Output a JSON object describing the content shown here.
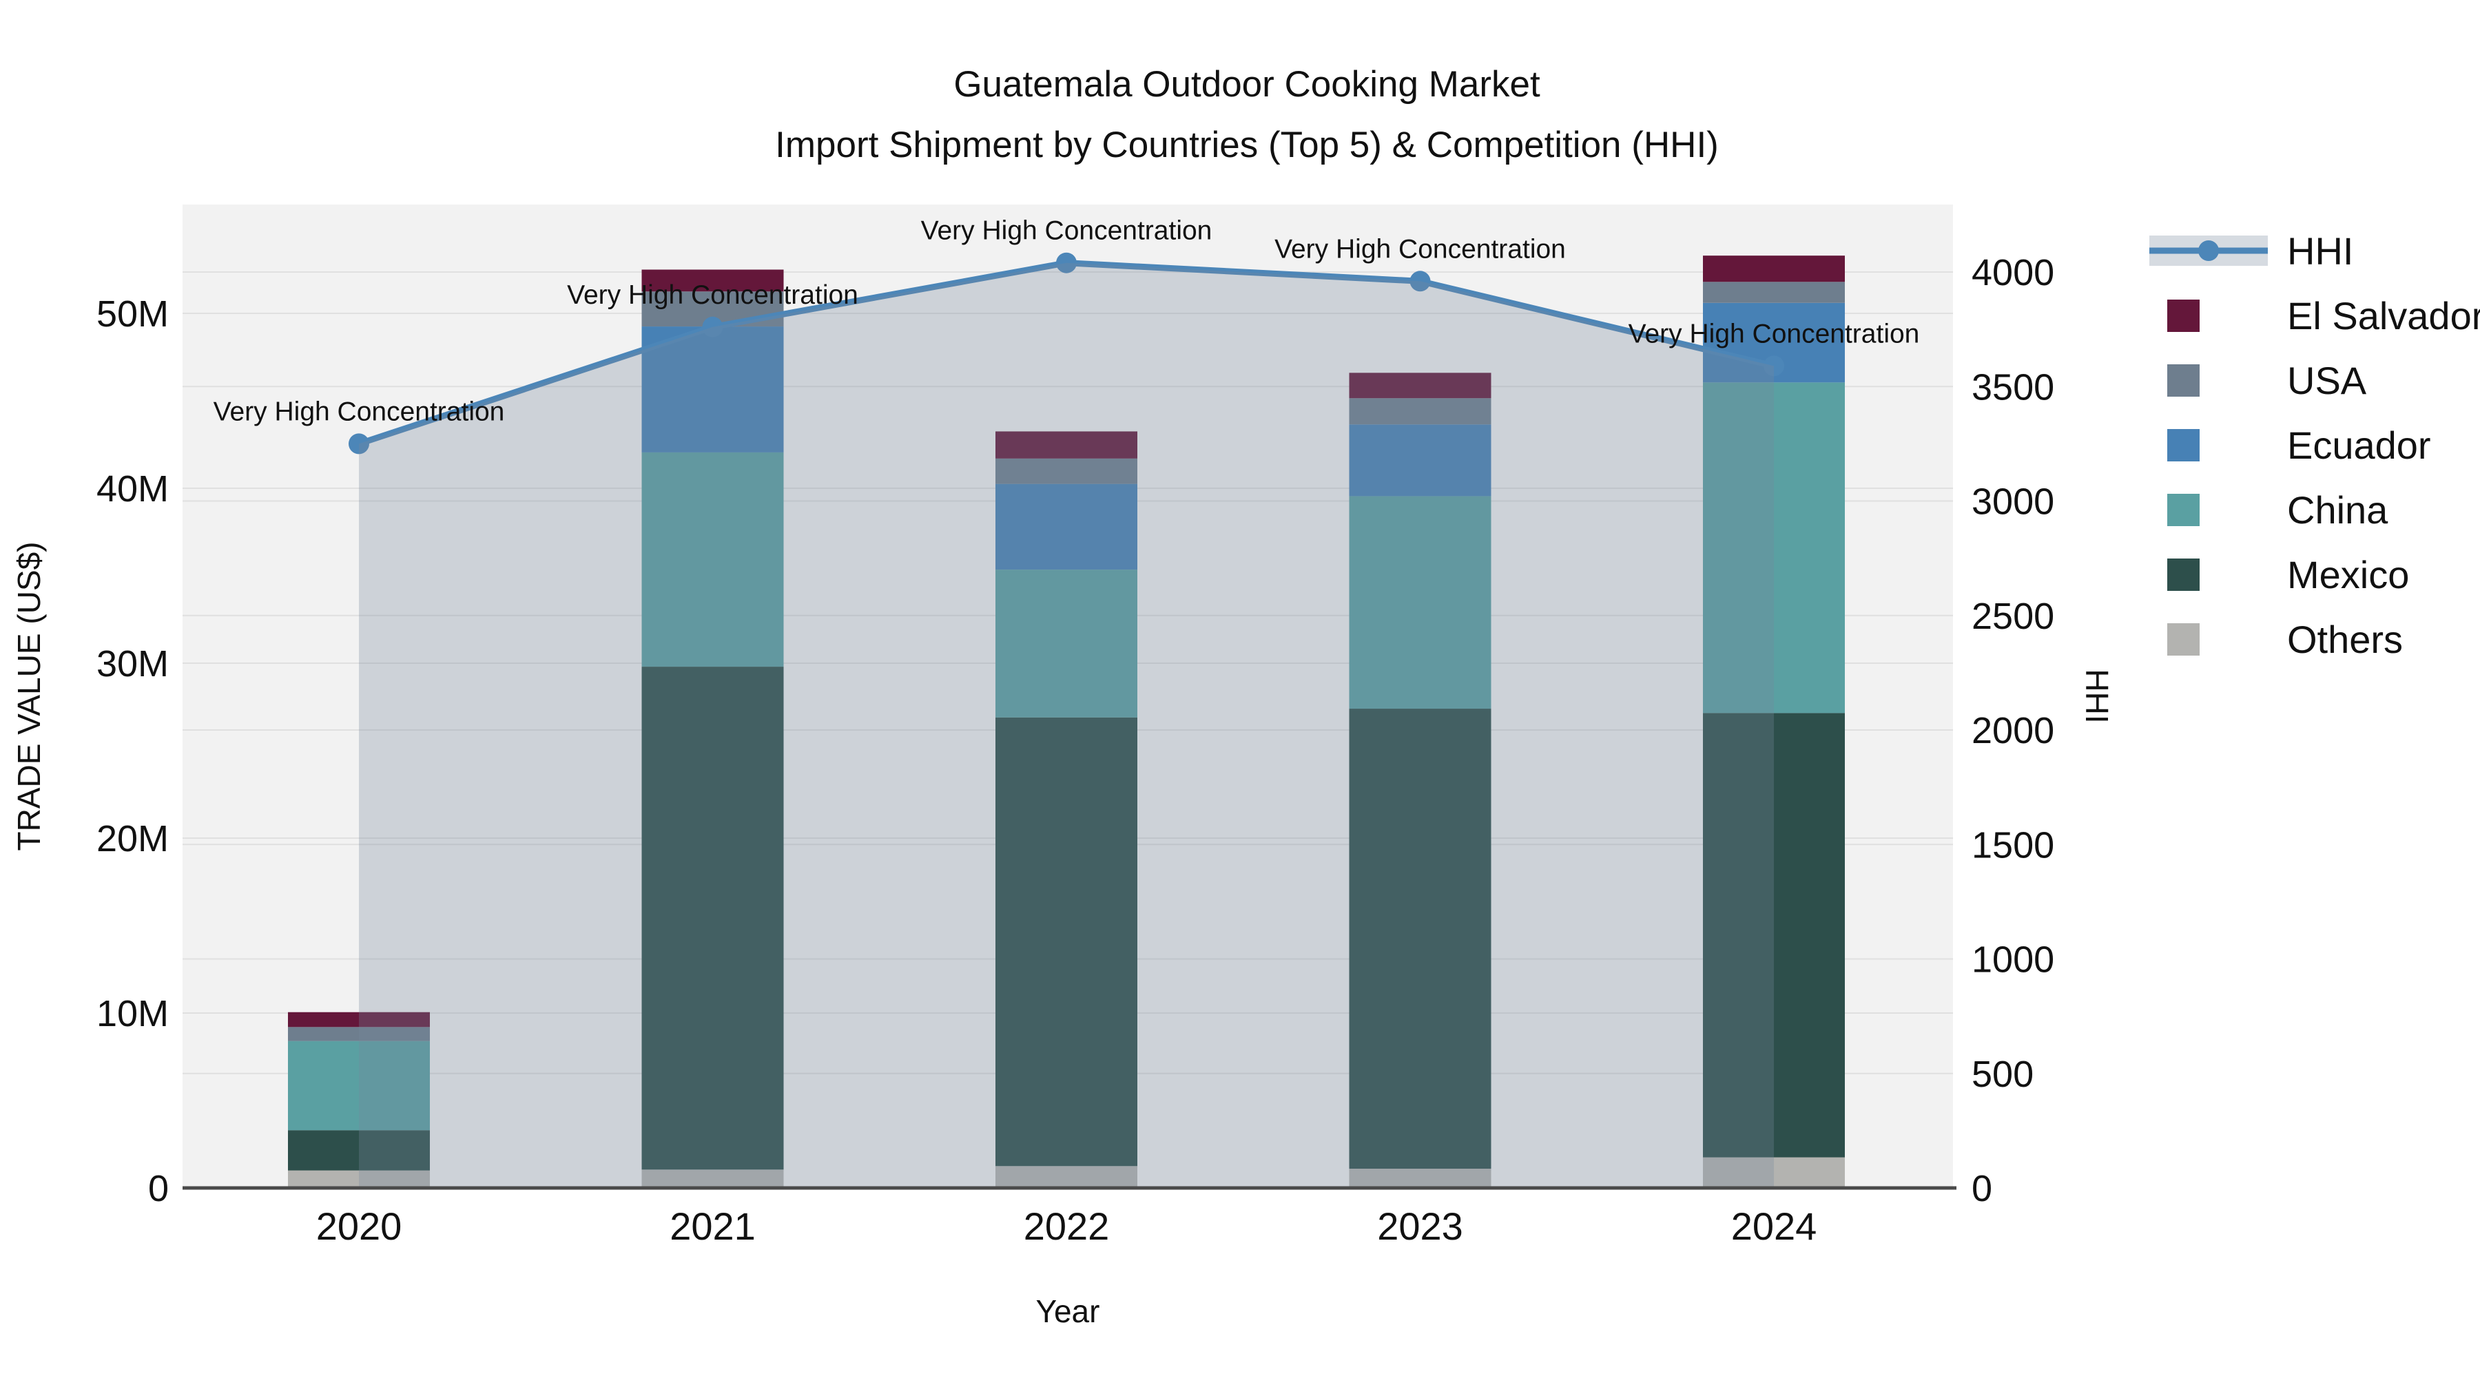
{
  "title": {
    "line1": "Guatemala Outdoor Cooking Market",
    "line2": "Import Shipment by Countries (Top 5) & Competition (HHI)"
  },
  "axes": {
    "y_left": {
      "label": "TRADE VALUE (US$)",
      "ticks": [
        "0",
        "10M",
        "20M",
        "30M",
        "40M",
        "50M"
      ],
      "tick_values": [
        0,
        10,
        20,
        30,
        40,
        50
      ]
    },
    "y_right": {
      "label": "HHI",
      "ticks": [
        "0",
        "500",
        "1000",
        "1500",
        "2000",
        "2500",
        "3000",
        "3500",
        "4000"
      ],
      "tick_values": [
        0,
        500,
        1000,
        1500,
        2000,
        2500,
        3000,
        3500,
        4000
      ]
    },
    "x": {
      "label": "Year",
      "categories": [
        "2020",
        "2021",
        "2022",
        "2023",
        "2024"
      ]
    }
  },
  "legend": {
    "items": [
      {
        "label": "HHI",
        "type": "line"
      },
      {
        "label": "El Salvador",
        "type": "swatch",
        "color": "#64173a"
      },
      {
        "label": "USA",
        "type": "swatch",
        "color": "#6e7e8e"
      },
      {
        "label": "Ecuador",
        "type": "swatch",
        "color": "#4781b5"
      },
      {
        "label": "China",
        "type": "swatch",
        "color": "#5aa0a2"
      },
      {
        "label": "Mexico",
        "type": "swatch",
        "color": "#2d4f4b"
      },
      {
        "label": "Others",
        "type": "swatch",
        "color": "#b3b3b0"
      }
    ]
  },
  "colors": {
    "el_salvador": "#64173a",
    "usa": "#6e7e8e",
    "ecuador": "#4781b5",
    "china": "#5aa0a2",
    "mexico": "#2d4f4b",
    "others": "#b3b3b0",
    "hhi_line": "#4c86b8",
    "hhi_area": "rgba(120,135,155,0.30)",
    "plot_bg": "#f2f2f2",
    "grid": "#e0e0e0",
    "axis_line": "#4a4a4a",
    "text": "#111111"
  },
  "chart_data": {
    "type": "bar",
    "subtype": "stacked-bar-with-line",
    "title": "Guatemala Outdoor Cooking Market — Import Shipment by Countries (Top 5) & Competition (HHI)",
    "xlabel": "Year",
    "ylabel_left": "TRADE VALUE (US$)",
    "ylabel_right": "HHI",
    "categories": [
      "2020",
      "2021",
      "2022",
      "2023",
      "2024"
    ],
    "value_unit": "US$ millions",
    "ylim_left": [
      0,
      52.4
    ],
    "ylim_right": [
      0,
      4000
    ],
    "grid": true,
    "legend_position": "right",
    "series": [
      {
        "name": "Others",
        "color": "#b3b3b0",
        "values": [
          1.0,
          1.05,
          1.25,
          1.1,
          1.75
        ]
      },
      {
        "name": "Mexico",
        "color": "#2d4f4b",
        "values": [
          2.3,
          28.75,
          25.65,
          26.3,
          25.4
        ]
      },
      {
        "name": "China",
        "color": "#5aa0a2",
        "values": [
          5.1,
          12.25,
          8.45,
          12.15,
          18.9
        ]
      },
      {
        "name": "Ecuador",
        "color": "#4781b5",
        "values": [
          0.0,
          7.2,
          4.9,
          4.1,
          4.55
        ]
      },
      {
        "name": "USA",
        "color": "#6e7e8e",
        "values": [
          0.8,
          2.0,
          1.45,
          1.5,
          1.2
        ]
      },
      {
        "name": "El Salvador",
        "color": "#64173a",
        "values": [
          0.85,
          1.25,
          1.55,
          1.45,
          1.5
        ]
      }
    ],
    "totals": [
      10.05,
      52.5,
      43.25,
      46.6,
      53.3
    ],
    "hhi": {
      "name": "HHI",
      "color": "#4c86b8",
      "values": [
        3250,
        3760,
        4040,
        3960,
        3590
      ],
      "area_fill": "rgba(120,135,155,0.30)"
    },
    "annotations": [
      {
        "x": "2020",
        "text": "Very High Concentration"
      },
      {
        "x": "2021",
        "text": "Very High Concentration"
      },
      {
        "x": "2022",
        "text": "Very High Concentration"
      },
      {
        "x": "2023",
        "text": "Very High Concentration"
      },
      {
        "x": "2024",
        "text": "Very High Concentration"
      }
    ]
  }
}
